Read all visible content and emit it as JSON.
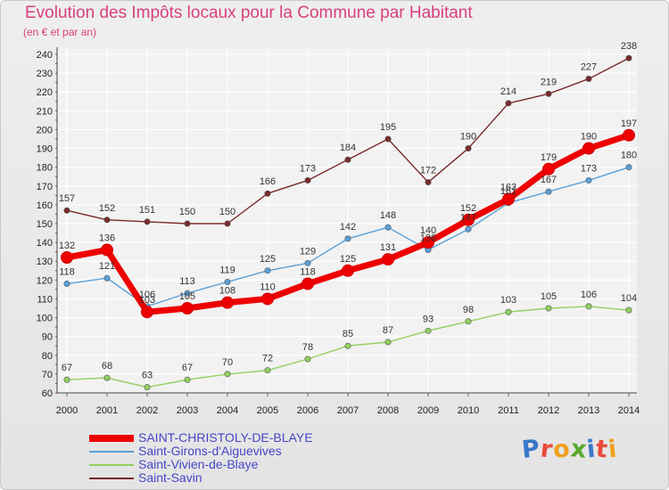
{
  "logo": {
    "text": "Proxiti",
    "letters": [
      {
        "ch": "P",
        "color": "#3a78c8"
      },
      {
        "ch": "r",
        "color": "#e84a3c"
      },
      {
        "ch": "o",
        "color": "#f0a020"
      },
      {
        "ch": "x",
        "color": "#5aaa2a"
      },
      {
        "ch": "i",
        "color": "#3a78c8"
      },
      {
        "ch": "t",
        "color": "#e84a3c"
      },
      {
        "ch": "i",
        "color": "#f0a020"
      }
    ]
  },
  "chart_data": {
    "type": "line",
    "title": "Evolution des Impôts locaux pour la Commune par Habitant",
    "subtitle": "(en € et par an)",
    "xlabel": "",
    "ylabel": "",
    "x": [
      "2000",
      "2001",
      "2002",
      "2003",
      "2004",
      "2005",
      "2006",
      "2007",
      "2008",
      "2009",
      "2010",
      "2011",
      "2012",
      "2013",
      "2014"
    ],
    "ylim": [
      60,
      240
    ],
    "yticks": [
      "60",
      "70",
      "80",
      "90",
      "100",
      "110",
      "120",
      "130",
      "140",
      "150",
      "160",
      "170",
      "180",
      "190",
      "200",
      "210",
      "220",
      "230",
      "240"
    ],
    "grid": true,
    "legend_position": "bottom-left",
    "series": [
      {
        "name": "SAINT-CHRISTOLY-DE-BLAYE",
        "color": "#ee0000",
        "values": [
          132,
          136,
          103,
          105,
          108,
          110,
          118,
          125,
          131,
          140,
          152,
          163,
          179,
          190,
          197
        ],
        "labels": [
          "132",
          "136",
          "103",
          "105",
          "108",
          "110",
          "118",
          "125",
          "131",
          "140",
          "152",
          "163",
          "179",
          "190",
          "197"
        ]
      },
      {
        "name": "Saint-Girons-d'Aiguevives",
        "color": "#5aa0d8",
        "values": [
          118,
          121,
          106,
          113,
          119,
          125,
          129,
          142,
          148,
          136,
          147,
          161,
          167,
          173,
          180
        ],
        "labels": [
          "118",
          "121",
          "106",
          "113",
          "119",
          "125",
          "129",
          "142",
          "148",
          "136",
          "147",
          "161",
          "167",
          "173",
          "180"
        ]
      },
      {
        "name": "Saint-Vivien-de-Blaye",
        "color": "#90d060",
        "values": [
          67,
          68,
          63,
          67,
          70,
          72,
          78,
          85,
          87,
          93,
          98,
          103,
          105,
          106,
          104
        ],
        "labels": [
          "67",
          "68",
          "63",
          "67",
          "70",
          "72",
          "78",
          "85",
          "87",
          "93",
          "98",
          "103",
          "105",
          "106",
          "104"
        ]
      },
      {
        "name": "Saint-Savin",
        "color": "#7a2a2a",
        "values": [
          157,
          152,
          151,
          150,
          150,
          166,
          173,
          184,
          195,
          172,
          190,
          214,
          219,
          227,
          238
        ],
        "labels": [
          "157",
          "152",
          "151",
          "150",
          "150",
          "166",
          "173",
          "184",
          "195",
          "172",
          "190",
          "214",
          "219",
          "227",
          "238"
        ]
      }
    ]
  }
}
